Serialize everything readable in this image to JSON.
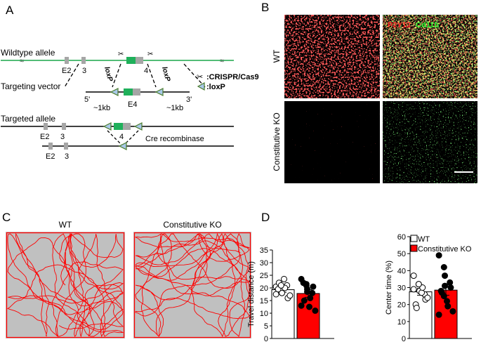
{
  "panel_letters": [
    "A",
    "B",
    "C",
    "D"
  ],
  "panel_a": {
    "wildtype_label": "Wildtype allele",
    "targeting_label": "Targeting vector",
    "targeted_label": "Targeted allele",
    "exon_labels": [
      "E2",
      "3",
      "4",
      "E4"
    ],
    "loxp_text": "loxP",
    "arm_5": "5'",
    "arm_3": "3'",
    "arm_left_size": "~1kb",
    "arm_right_size": "~1kb",
    "legend_crispr": ":CRISPR/Cas9",
    "legend_loxp": ":loxP",
    "cre_label": "Cre recombinase",
    "bottom_exon_labels": [
      "E2",
      "3",
      "4"
    ],
    "deleted_exon_labels": [
      "E2",
      "3"
    ]
  },
  "panel_b": {
    "row_labels": [
      "WT",
      "Constitutive KO"
    ],
    "stain_p2y12": "P2Y12",
    "stain_cd11b": "Cd11b",
    "colors": {
      "p2y12": "#ff2a2a",
      "cd11b": "#33ff33"
    }
  },
  "panel_c": {
    "titles": [
      "WT",
      "Constitutive KO"
    ],
    "arena_color": "#c0c0c0",
    "track_color": "#ff0000"
  },
  "panel_d": {
    "legend": [
      "WT",
      "Constitutive KO"
    ],
    "colors": {
      "wt": "#ffffff",
      "ko": "#ff0000"
    }
  },
  "chart_data": [
    {
      "type": "bar",
      "categories": [
        "WT",
        "Constitutive KO"
      ],
      "values": [
        19.3,
        17.8
      ],
      "errors": [
        1.0,
        1.5
      ],
      "ylabel": "Travel distance (m)",
      "ylim": [
        0,
        35
      ],
      "yticks": [
        "0",
        "5",
        "10",
        "15",
        "20",
        "25",
        "30",
        "35"
      ],
      "points": [
        [
          20.5,
          19,
          18,
          21,
          16,
          19.5,
          22,
          23.5,
          20,
          17,
          17.5,
          21
        ],
        [
          23.5,
          21,
          19.5,
          18,
          20.5,
          22,
          15,
          12.5,
          16,
          11,
          13,
          21.5,
          18.5
        ]
      ]
    },
    {
      "type": "bar",
      "categories": [
        "WT",
        "Constitutive KO"
      ],
      "values": [
        27.5,
        28.5
      ],
      "errors": [
        2.0,
        3.0
      ],
      "ylabel": "Center time (%)",
      "ylim": [
        0,
        60
      ],
      "yticks": [
        "0",
        "10",
        "20",
        "30",
        "40",
        "50",
        "60"
      ],
      "points": [
        [
          37,
          32,
          28,
          26,
          23,
          20,
          18,
          27,
          30,
          24,
          29,
          32
        ],
        [
          49,
          42,
          37,
          33,
          30,
          28,
          27,
          22,
          19,
          16,
          14,
          25,
          31
        ]
      ]
    }
  ]
}
